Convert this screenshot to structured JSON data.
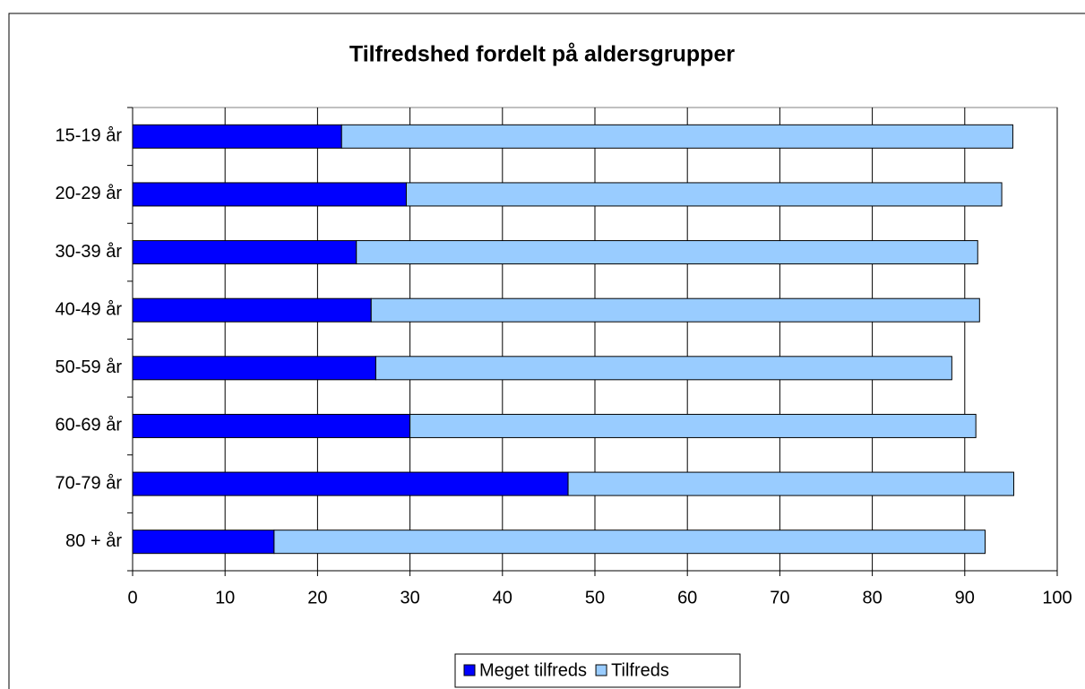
{
  "chart_data": {
    "type": "stacked_bar_horizontal",
    "title": "Tilfredshed fordelt på aldersgrupper",
    "categories": [
      "15-19 år",
      "20-29 år",
      "30-39 år",
      "40-49 år",
      "50-59 år",
      "60-69 år",
      "70-79 år",
      "80 + år"
    ],
    "series": [
      {
        "name": "Meget tilfreds",
        "color": "#0000ff",
        "values": [
          22.6,
          29.6,
          24.2,
          25.8,
          26.3,
          30.0,
          47.1,
          15.3
        ]
      },
      {
        "name": "Tilfreds",
        "color": "#99ccff",
        "values": [
          72.6,
          64.4,
          67.2,
          65.8,
          62.3,
          61.2,
          48.2,
          76.9
        ]
      }
    ],
    "xlim": [
      0,
      100
    ],
    "xticks": [
      0,
      10,
      20,
      30,
      40,
      50,
      60,
      70,
      80,
      90,
      100
    ],
    "grid": true,
    "legend": "bottom"
  }
}
